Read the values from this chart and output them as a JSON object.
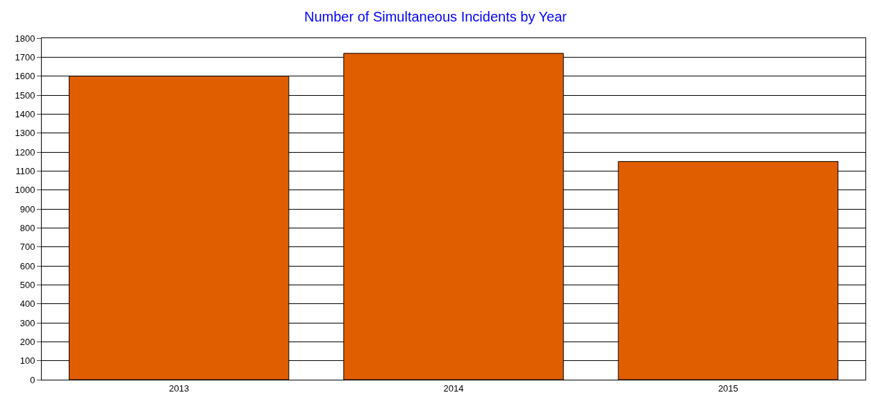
{
  "chart_data": {
    "type": "bar",
    "title": "Number of Simultaneous Incidents by Year",
    "categories": [
      "2013",
      "2014",
      "2015"
    ],
    "values": [
      1600,
      1720,
      1150
    ],
    "color": "#e05e00",
    "ylim": [
      0,
      1800
    ],
    "yticks": [
      0,
      100,
      200,
      300,
      400,
      500,
      600,
      700,
      800,
      900,
      1000,
      1100,
      1200,
      1300,
      1400,
      1500,
      1600,
      1700,
      1800
    ],
    "grid": "y"
  }
}
